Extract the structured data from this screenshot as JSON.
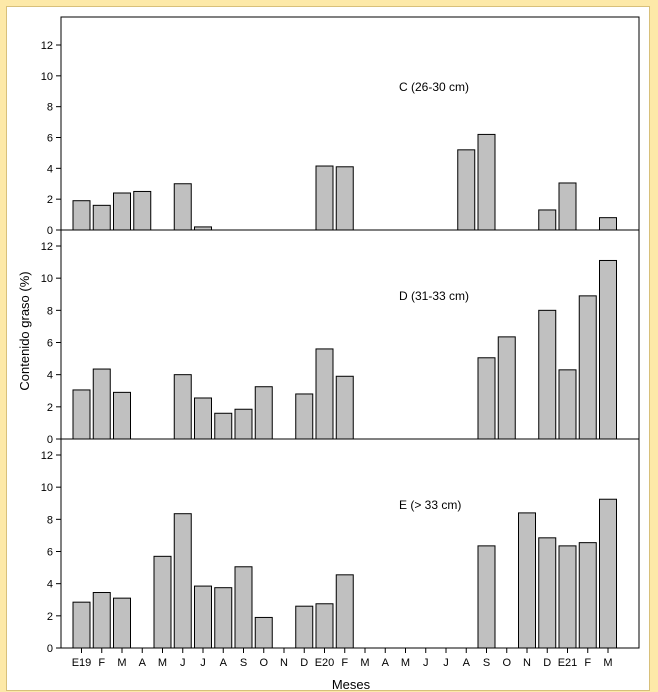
{
  "colors": {
    "bar_fill": "#c0c0c0",
    "bar_stroke": "#000000",
    "background": "#fde9a8"
  },
  "chart_data": {
    "type": "bar",
    "xlabel": "Meses",
    "ylabel": "Contenido graso (%)",
    "categories": [
      "E19",
      "F",
      "M",
      "A",
      "M",
      "J",
      "J",
      "A",
      "S",
      "O",
      "N",
      "D",
      "E20",
      "F",
      "M",
      "A",
      "M",
      "J",
      "J",
      "A",
      "S",
      "O",
      "N",
      "D",
      "E21",
      "F",
      "M"
    ],
    "ylim": [
      0,
      12
    ],
    "yticks": [
      0,
      2,
      4,
      6,
      8,
      10,
      12
    ],
    "grid": false,
    "panels": [
      {
        "label": "C (26-30 cm)",
        "values": [
          1.9,
          1.6,
          2.4,
          2.5,
          null,
          3.0,
          0.2,
          null,
          null,
          null,
          null,
          null,
          4.15,
          4.1,
          null,
          null,
          null,
          null,
          null,
          5.2,
          6.2,
          null,
          null,
          1.3,
          3.05,
          null,
          0.8
        ]
      },
      {
        "label": "D (31-33 cm)",
        "values": [
          3.05,
          4.35,
          2.9,
          null,
          null,
          4.0,
          2.55,
          1.6,
          1.85,
          3.25,
          null,
          2.8,
          5.6,
          3.9,
          null,
          null,
          null,
          null,
          null,
          null,
          5.05,
          6.35,
          null,
          8.0,
          4.3,
          8.9,
          11.1
        ]
      },
      {
        "label": "E (> 33 cm)",
        "values": [
          2.85,
          3.45,
          3.1,
          null,
          5.7,
          8.35,
          3.85,
          3.75,
          5.05,
          1.9,
          null,
          2.6,
          2.75,
          4.55,
          null,
          null,
          null,
          null,
          null,
          null,
          6.35,
          null,
          8.4,
          6.85,
          6.35,
          6.55,
          9.25
        ]
      }
    ]
  }
}
